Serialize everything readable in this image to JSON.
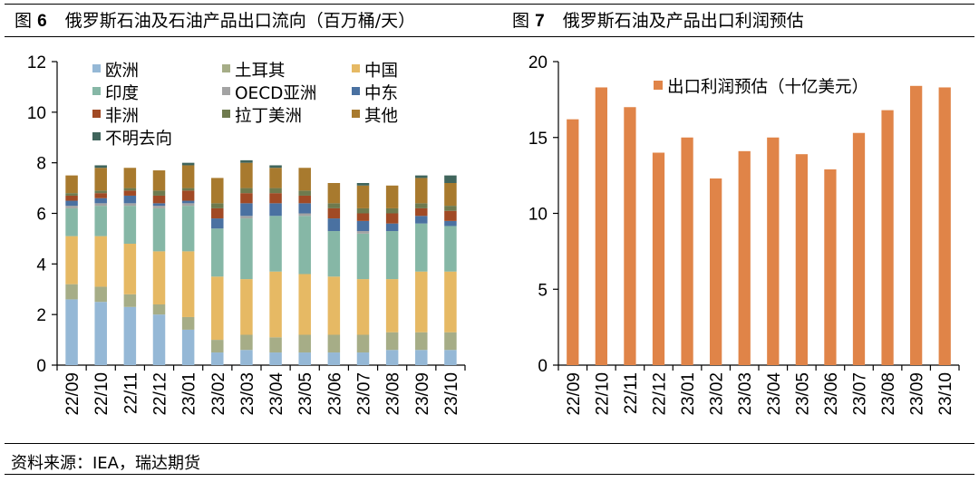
{
  "header": {
    "left_title_prefix": "图",
    "left_title_num": "6",
    "left_title_text": "俄罗斯石油及石油产品出口流向（百万桶/天）",
    "right_title_prefix": "图",
    "right_title_num": "7",
    "right_title_text": "俄罗斯石油及产品出口利润预估"
  },
  "footer": {
    "source": "资料来源：IEA，瑞达期货"
  },
  "chart_data": [
    {
      "type": "bar",
      "stacked": true,
      "title": "俄罗斯石油及石油产品出口流向（百万桶/天）",
      "categories": [
        "22/09",
        "22/10",
        "22/11",
        "22/12",
        "23/01",
        "23/02",
        "23/03",
        "23/04",
        "23/05",
        "23/06",
        "23/07",
        "23/08",
        "23/09",
        "23/10"
      ],
      "ylim": [
        0,
        12
      ],
      "yticks": [
        0,
        2,
        4,
        6,
        8,
        10,
        12
      ],
      "grid": false,
      "legend_position": "top-left",
      "series": [
        {
          "name": "欧洲",
          "color": "#95B8D6",
          "values": [
            2.6,
            2.5,
            2.3,
            2.0,
            1.4,
            0.5,
            0.6,
            0.5,
            0.5,
            0.5,
            0.5,
            0.6,
            0.6,
            0.6
          ]
        },
        {
          "name": "土耳其",
          "color": "#A6AD87",
          "values": [
            0.6,
            0.6,
            0.5,
            0.4,
            0.5,
            0.5,
            0.6,
            0.6,
            0.7,
            0.7,
            0.7,
            0.7,
            0.7,
            0.7
          ]
        },
        {
          "name": "中国",
          "color": "#E6B964",
          "values": [
            1.9,
            2.0,
            2.0,
            2.1,
            2.6,
            2.5,
            2.2,
            2.6,
            2.4,
            2.3,
            2.2,
            2.1,
            2.4,
            2.4
          ]
        },
        {
          "name": "印度",
          "color": "#86B7A6",
          "values": [
            1.1,
            1.2,
            1.5,
            1.7,
            1.8,
            1.9,
            2.4,
            2.2,
            2.3,
            1.8,
            1.8,
            1.9,
            1.9,
            1.8
          ]
        },
        {
          "name": "OECD亚洲",
          "color": "#A3A3A3",
          "values": [
            0.1,
            0.1,
            0.1,
            0.1,
            0.1,
            0.0,
            0.1,
            0.0,
            0.1,
            0.0,
            0.1,
            0.0,
            0.0,
            0.0
          ]
        },
        {
          "name": "中东",
          "color": "#4A71A1",
          "values": [
            0.2,
            0.2,
            0.3,
            0.1,
            0.1,
            0.4,
            0.5,
            0.5,
            0.4,
            0.5,
            0.4,
            0.3,
            0.3,
            0.2
          ]
        },
        {
          "name": "非洲",
          "color": "#A14A25",
          "values": [
            0.2,
            0.2,
            0.2,
            0.3,
            0.4,
            0.4,
            0.4,
            0.4,
            0.3,
            0.4,
            0.3,
            0.4,
            0.3,
            0.4
          ]
        },
        {
          "name": "拉丁美洲",
          "color": "#6E7A4E",
          "values": [
            0.1,
            0.1,
            0.1,
            0.2,
            0.1,
            0.2,
            0.2,
            0.2,
            0.2,
            0.2,
            0.2,
            0.2,
            0.2,
            0.2
          ]
        },
        {
          "name": "其他",
          "color": "#A87A2E",
          "values": [
            0.7,
            0.9,
            0.8,
            0.8,
            0.9,
            1.0,
            1.0,
            0.8,
            0.9,
            0.8,
            0.9,
            0.9,
            1.0,
            0.9
          ]
        },
        {
          "name": "不明去向",
          "color": "#40655C",
          "values": [
            0.0,
            0.1,
            0.0,
            0.0,
            0.1,
            0.0,
            0.1,
            0.1,
            0.0,
            0.0,
            0.1,
            0.0,
            0.1,
            0.3
          ]
        }
      ]
    },
    {
      "type": "bar",
      "title": "俄罗斯石油及产品出口利润预估",
      "categories": [
        "22/09",
        "22/10",
        "22/11",
        "22/12",
        "23/01",
        "23/02",
        "23/03",
        "23/04",
        "23/05",
        "23/06",
        "23/07",
        "23/08",
        "23/09",
        "23/10"
      ],
      "ylim": [
        0,
        20
      ],
      "yticks": [
        0,
        5,
        10,
        15,
        20
      ],
      "grid": false,
      "legend_position": "top-center",
      "series": [
        {
          "name": "出口利润预估（十亿美元）",
          "color": "#E08448",
          "values": [
            16.2,
            18.3,
            17.0,
            14.0,
            15.0,
            12.3,
            14.1,
            15.0,
            13.9,
            12.9,
            15.3,
            16.8,
            18.4,
            18.3
          ]
        }
      ]
    }
  ]
}
